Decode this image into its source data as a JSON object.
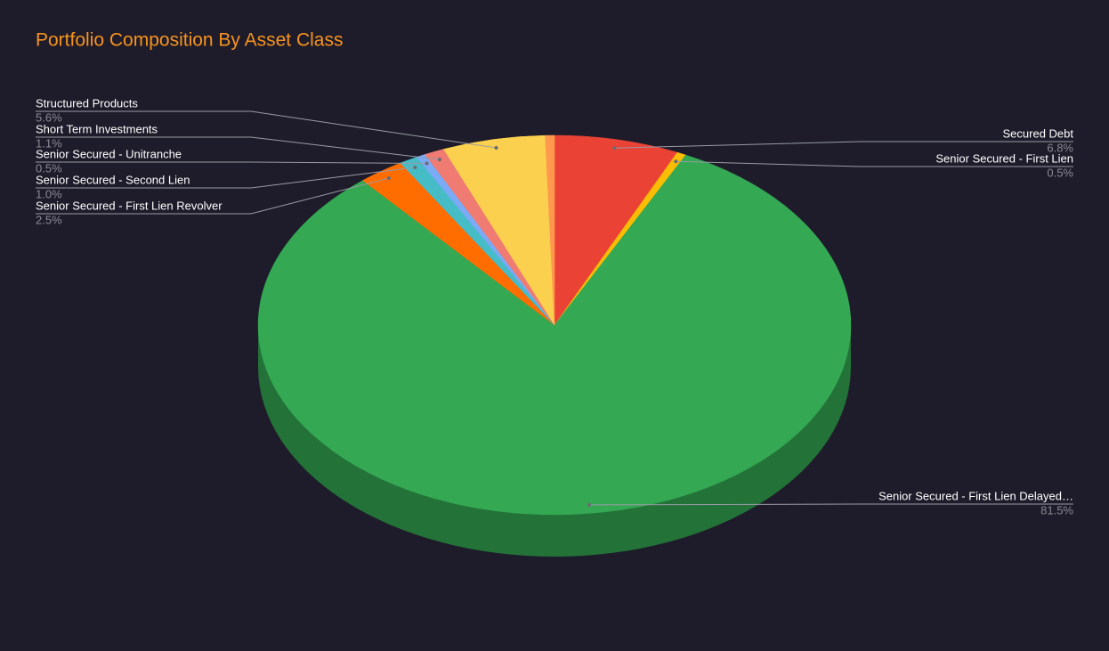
{
  "chart_data": {
    "type": "pie3d",
    "title": "Portfolio Composition By Asset Class",
    "categories": [
      "Secured Debt",
      "Senior Secured - First Lien",
      "Senior Secured - First Lien Delayed…",
      "Senior Secured - First Lien Revolver",
      "Senior Secured - Second Lien",
      "Senior Secured - Unitranche",
      "Short Term Investments",
      "Structured Products",
      null
    ],
    "values": [
      6.8,
      0.5,
      81.5,
      2.5,
      1.0,
      0.5,
      1.1,
      5.6,
      0.5
    ],
    "value_labels": [
      "6.8%",
      "0.5%",
      "81.5%",
      "2.5%",
      "1.0%",
      "0.5%",
      "1.1%",
      "5.6%",
      null
    ],
    "colors": [
      "#ea4335",
      "#fbbc04",
      "#34a853",
      "#ff6d01",
      "#46bdc6",
      "#7baaf7",
      "#f07b72",
      "#fcd04f",
      "#ff994d"
    ]
  }
}
